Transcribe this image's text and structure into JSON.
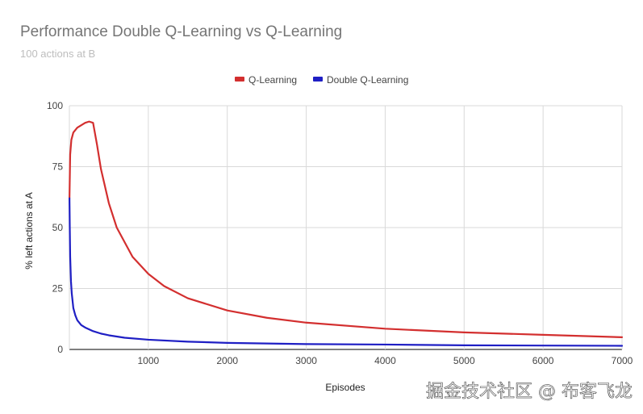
{
  "chart_data": {
    "type": "line",
    "title": "Performance Double Q-Learning vs Q-Learning",
    "subtitle": "100 actions at B",
    "xlabel": "Episodes",
    "ylabel": "% left actions at A",
    "xlim": [
      0,
      7000
    ],
    "ylim": [
      0,
      100
    ],
    "x_ticks": [
      1000,
      2000,
      3000,
      4000,
      5000,
      6000,
      7000
    ],
    "y_ticks": [
      0,
      25,
      50,
      75,
      100
    ],
    "grid": true,
    "legend_position": "top",
    "series": [
      {
        "name": "Q-Learning",
        "color": "#d32f2f",
        "x": [
          1,
          10,
          25,
          50,
          100,
          150,
          200,
          250,
          300,
          350,
          400,
          500,
          600,
          800,
          1000,
          1200,
          1500,
          2000,
          2500,
          3000,
          4000,
          5000,
          6000,
          7000
        ],
        "y": [
          62,
          80,
          86,
          89,
          91,
          92,
          93,
          93.5,
          93,
          84,
          74,
          60,
          50,
          38,
          31,
          26,
          21,
          16,
          13,
          11,
          8.5,
          7,
          6,
          5
        ]
      },
      {
        "name": "Double Q-Learning",
        "color": "#1f1fc4",
        "x": [
          1,
          5,
          10,
          20,
          30,
          50,
          75,
          100,
          150,
          200,
          300,
          400,
          500,
          700,
          1000,
          1500,
          2000,
          3000,
          4000,
          5000,
          6000,
          7000
        ],
        "y": [
          62,
          50,
          38,
          28,
          23,
          17,
          14,
          12,
          10,
          9,
          7.5,
          6.5,
          5.8,
          4.8,
          4,
          3.2,
          2.7,
          2.2,
          2,
          1.7,
          1.6,
          1.5
        ]
      }
    ]
  },
  "watermark": "掘金技术社区 @ 布客飞龙"
}
